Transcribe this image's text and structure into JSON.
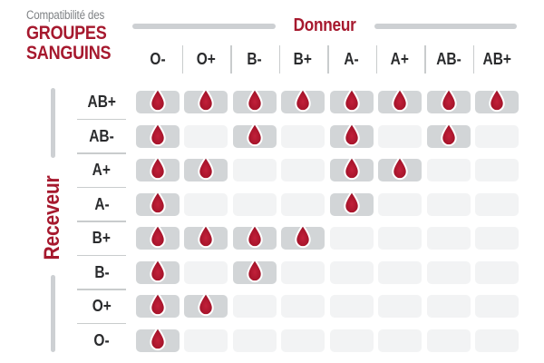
{
  "title": {
    "eyebrow": "Compatibilité des",
    "line1": "GROUPES",
    "line2": "SANGUINS"
  },
  "donor_axis": {
    "label": "Donneur"
  },
  "receiver_axis": {
    "label": "Receveur"
  },
  "icons": {
    "compatible_marker": "blood-drop-icon"
  },
  "colors": {
    "accent_red": "#A6192E",
    "drop_red": "#A41329",
    "drop_highlight": "#C2203A",
    "cell_filled": "#D2D5D7",
    "cell_empty": "#F2F3F4",
    "axis_bar_gray": "#CDD0D3",
    "label_dark": "#2A2B2D",
    "muted_gray": "#7F8285",
    "divider": "#C9CCCD"
  },
  "chart_data": {
    "type": "heatmap",
    "title": "Compatibilité des GROUPES SANGUINS",
    "x_axis_label": "Donneur",
    "y_axis_label": "Receveur",
    "columns": [
      "O-",
      "O+",
      "B-",
      "B+",
      "A-",
      "A+",
      "AB-",
      "AB+"
    ],
    "rows": [
      "AB+",
      "AB-",
      "A+",
      "A-",
      "B+",
      "B-",
      "O+",
      "O-"
    ],
    "matrix": [
      [
        1,
        1,
        1,
        1,
        1,
        1,
        1,
        1
      ],
      [
        1,
        0,
        1,
        0,
        1,
        0,
        1,
        0
      ],
      [
        1,
        1,
        0,
        0,
        1,
        1,
        0,
        0
      ],
      [
        1,
        0,
        0,
        0,
        1,
        0,
        0,
        0
      ],
      [
        1,
        1,
        1,
        1,
        0,
        0,
        0,
        0
      ],
      [
        1,
        0,
        1,
        0,
        0,
        0,
        0,
        0
      ],
      [
        1,
        1,
        0,
        0,
        0,
        0,
        0,
        0
      ],
      [
        1,
        0,
        0,
        0,
        0,
        0,
        0,
        0
      ]
    ],
    "cell_marker": "blood-drop",
    "legend_position": "none",
    "grid": "off"
  }
}
